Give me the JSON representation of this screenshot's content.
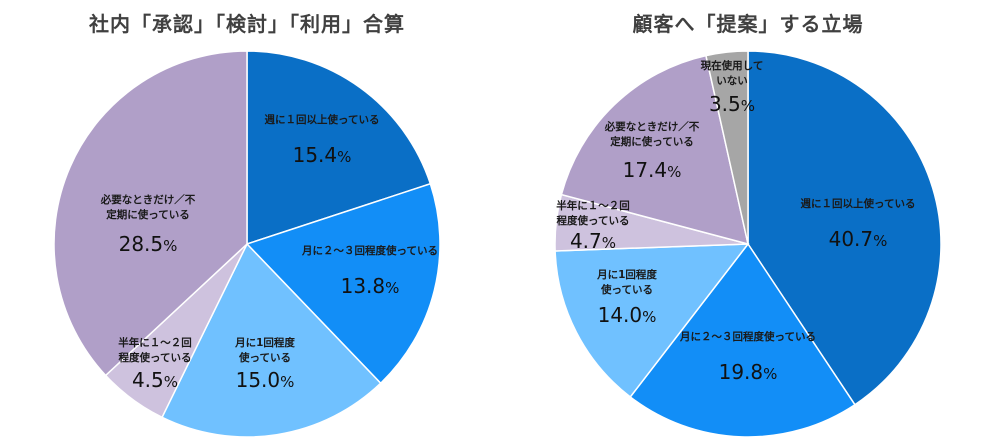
{
  "chart_data": [
    {
      "type": "pie",
      "title": "社内「承認」「検討」「利用」合算",
      "start_angle": "12 o'clock, clockwise",
      "slices": [
        {
          "label": "週に１回以上使っている",
          "value": 15.4,
          "color": "#0A6FC6"
        },
        {
          "label": "月に２～３回程度使っている",
          "value": 13.8,
          "color": "#128EF7"
        },
        {
          "label": "月に1回程度\n使っている",
          "value": 15.0,
          "color": "#70C1FF"
        },
        {
          "label": "半年に１～２回\n程度使っている",
          "value": 4.5,
          "color": "#CEC2DE"
        },
        {
          "label": "必要なときだけ／不\n定期に使っている",
          "value": 28.5,
          "color": "#B09FC8"
        }
      ]
    },
    {
      "type": "pie",
      "title": "顧客へ「提案」する立場",
      "start_angle": "12 o'clock, clockwise",
      "slices": [
        {
          "label": "週に１回以上使っている",
          "value": 40.7,
          "color": "#0A6FC6"
        },
        {
          "label": "月に２～３回程度使っている",
          "value": 19.8,
          "color": "#128EF7"
        },
        {
          "label": "月に1回程度\n使っている",
          "value": 14.0,
          "color": "#70C1FF"
        },
        {
          "label": "半年に１～２回\n程度使っている",
          "value": 4.7,
          "color": "#CEC2DE"
        },
        {
          "label": "必要なときだけ／不\n定期に使っている",
          "value": 17.4,
          "color": "#B09FC8"
        },
        {
          "label": "現在使用して\nいない",
          "value": 3.5,
          "color": "#A6A6A6"
        }
      ]
    }
  ]
}
